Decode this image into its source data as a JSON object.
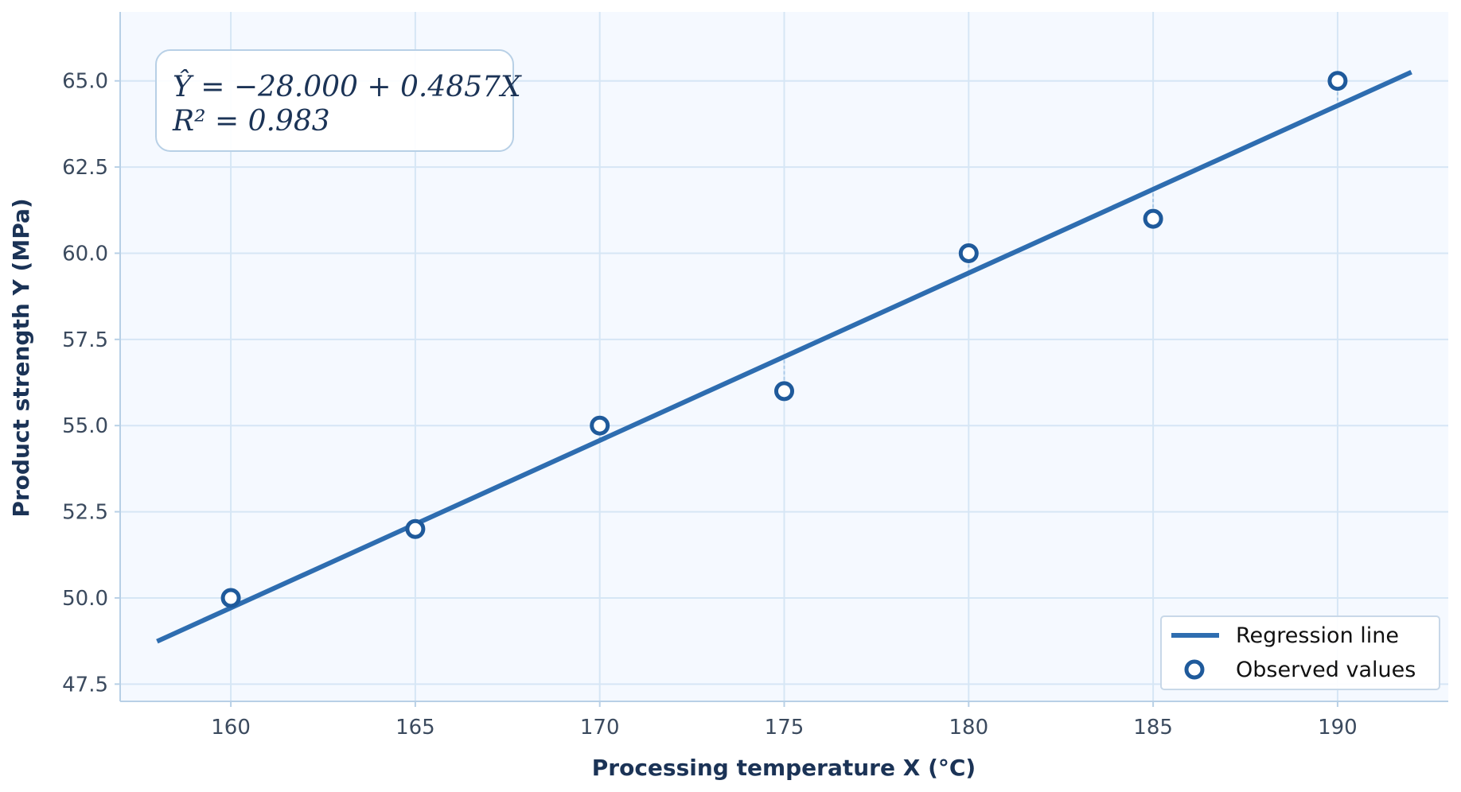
{
  "chart_data": {
    "type": "scatter",
    "title": "",
    "xlabel": "Processing temperature X (°C)",
    "ylabel": "Product strength Y (MPa)",
    "xlim": [
      157,
      193
    ],
    "ylim": [
      47,
      67
    ],
    "x_ticks": [
      160,
      165,
      170,
      175,
      180,
      185,
      190
    ],
    "x_tick_labels": [
      "160",
      "165",
      "170",
      "175",
      "180",
      "185",
      "190"
    ],
    "y_ticks": [
      47.5,
      50.0,
      52.5,
      55.0,
      57.5,
      60.0,
      62.5,
      65.0
    ],
    "y_tick_labels": [
      "47.5",
      "50.0",
      "52.5",
      "55.0",
      "57.5",
      "60.0",
      "62.5",
      "65.0"
    ],
    "grid": true,
    "series": [
      {
        "name": "Observed values",
        "kind": "scatter",
        "x": [
          160,
          165,
          170,
          175,
          180,
          185,
          190
        ],
        "y": [
          50,
          52,
          55,
          56,
          60,
          61,
          65
        ]
      },
      {
        "name": "Regression line",
        "kind": "line",
        "intercept": -28.0,
        "slope": 0.4857,
        "x_range": [
          158,
          192
        ]
      }
    ],
    "annotation": {
      "equation": "Ŷ = −28.000 + 0.4857X",
      "r_squared": "R² = 0.983"
    },
    "legend": {
      "placement": "bottom-right",
      "entries": [
        "Regression line",
        "Observed values"
      ]
    },
    "colors": {
      "line": "#2e6db0",
      "marker_edge": "#1f5a9b",
      "marker_face": "#ffffff",
      "plot_background": "#f5f9ff",
      "grid": "#d6e6f5",
      "residual": "#a9c9e8"
    }
  }
}
